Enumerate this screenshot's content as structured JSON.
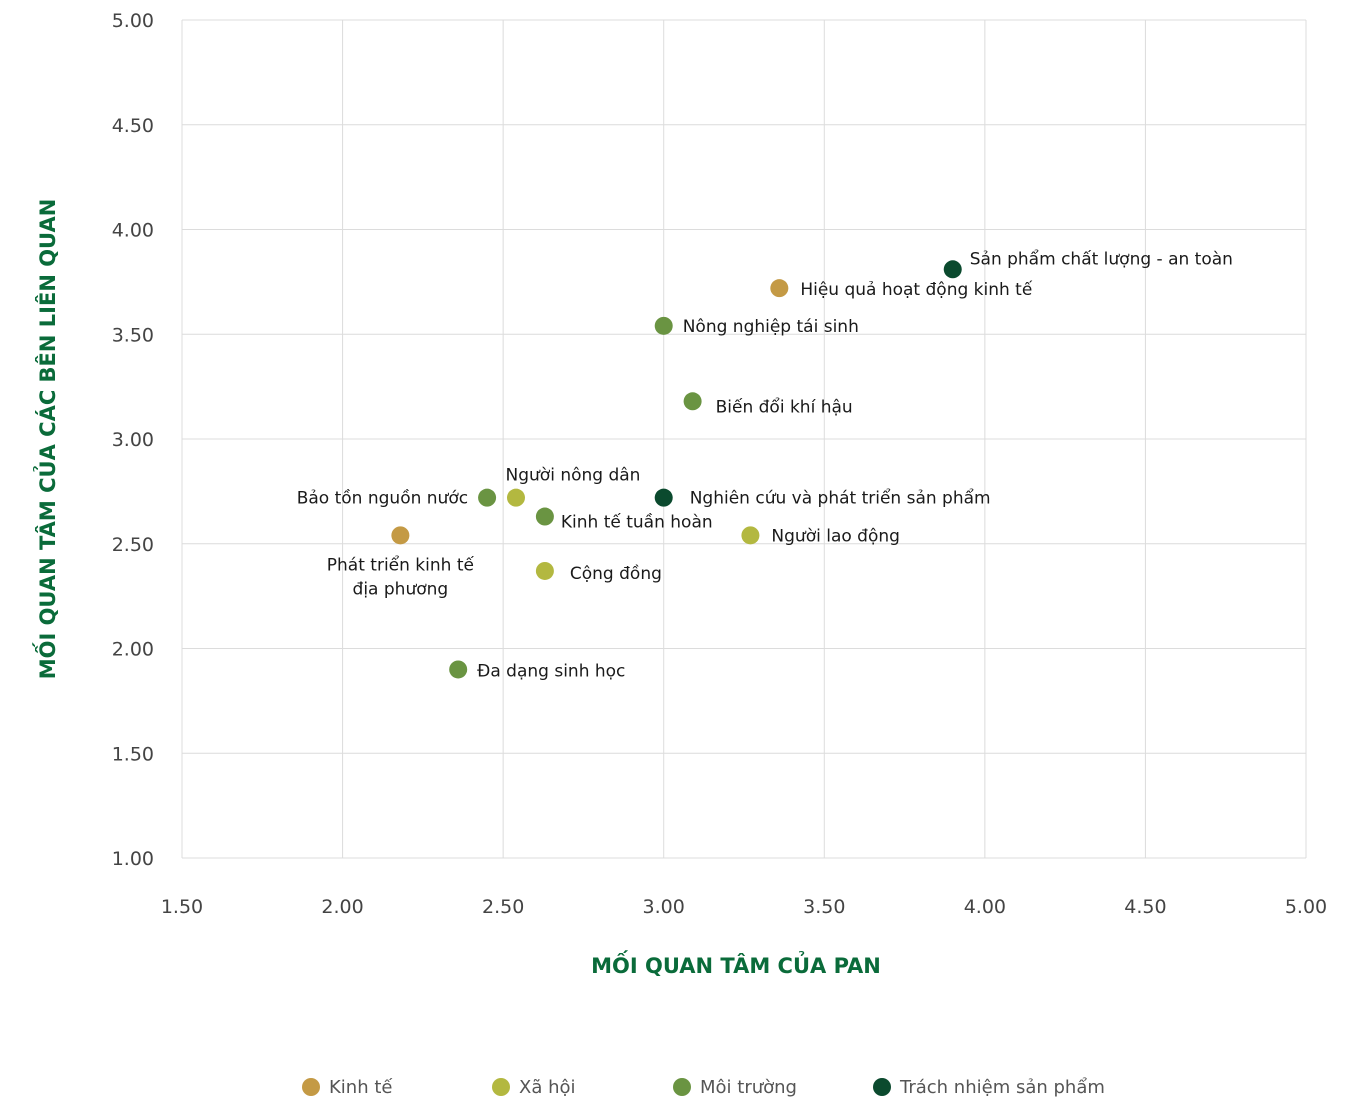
{
  "chart_data": {
    "type": "scatter",
    "xlabel": "MỐI QUAN TÂM CỦA PAN",
    "ylabel": "MỐI QUAN TÂM CỦA CÁC BÊN LIÊN QUAN",
    "xlim": [
      1.5,
      5.0
    ],
    "ylim": [
      1.0,
      5.0
    ],
    "x_ticks": [
      "1.50",
      "2.00",
      "2.50",
      "3.00",
      "3.50",
      "4.00",
      "4.50",
      "5.00"
    ],
    "y_ticks": [
      "1.00",
      "1.50",
      "2.00",
      "2.50",
      "3.00",
      "3.50",
      "4.00",
      "4.50",
      "5.00"
    ],
    "grid": true,
    "legend_position": "bottom",
    "colors": {
      "kinh_te": "#c49a45",
      "xa_hoi": "#b3b840",
      "moi_truong": "#6a9442",
      "trach_nhiem": "#0b4a2e"
    },
    "series": [
      {
        "name": "Kinh tế",
        "color": "#c49a45",
        "points": [
          {
            "label": "Hiệu quả hoạt động kinh tế",
            "x": 3.36,
            "y": 3.72
          },
          {
            "label": "Phát triển kinh tế địa phương",
            "x": 2.18,
            "y": 2.54
          }
        ]
      },
      {
        "name": "Xã hội",
        "color": "#b3b840",
        "points": [
          {
            "label": "Người nông dân",
            "x": 2.54,
            "y": 2.72
          },
          {
            "label": "Người lao động",
            "x": 3.27,
            "y": 2.54
          },
          {
            "label": "Cộng đồng",
            "x": 2.63,
            "y": 2.37
          }
        ]
      },
      {
        "name": "Môi trường",
        "color": "#6a9442",
        "points": [
          {
            "label": "Nông nghiệp tái sinh",
            "x": 3.0,
            "y": 3.54
          },
          {
            "label": "Biến đổi khí hậu",
            "x": 3.09,
            "y": 3.18
          },
          {
            "label": "Bảo tồn nguồn nước",
            "x": 2.45,
            "y": 2.72
          },
          {
            "label": "Kinh tế tuần hoàn",
            "x": 2.63,
            "y": 2.63
          },
          {
            "label": "Đa dạng sinh học",
            "x": 2.36,
            "y": 1.9
          }
        ]
      },
      {
        "name": "Trách nhiệm sản phẩm",
        "color": "#0b4a2e",
        "points": [
          {
            "label": "Sản phẩm chất lượng - an toàn",
            "x": 3.9,
            "y": 3.81
          },
          {
            "label": "Nghiên cứu và phát triển sản phẩm",
            "x": 3.0,
            "y": 2.72
          }
        ]
      }
    ]
  }
}
